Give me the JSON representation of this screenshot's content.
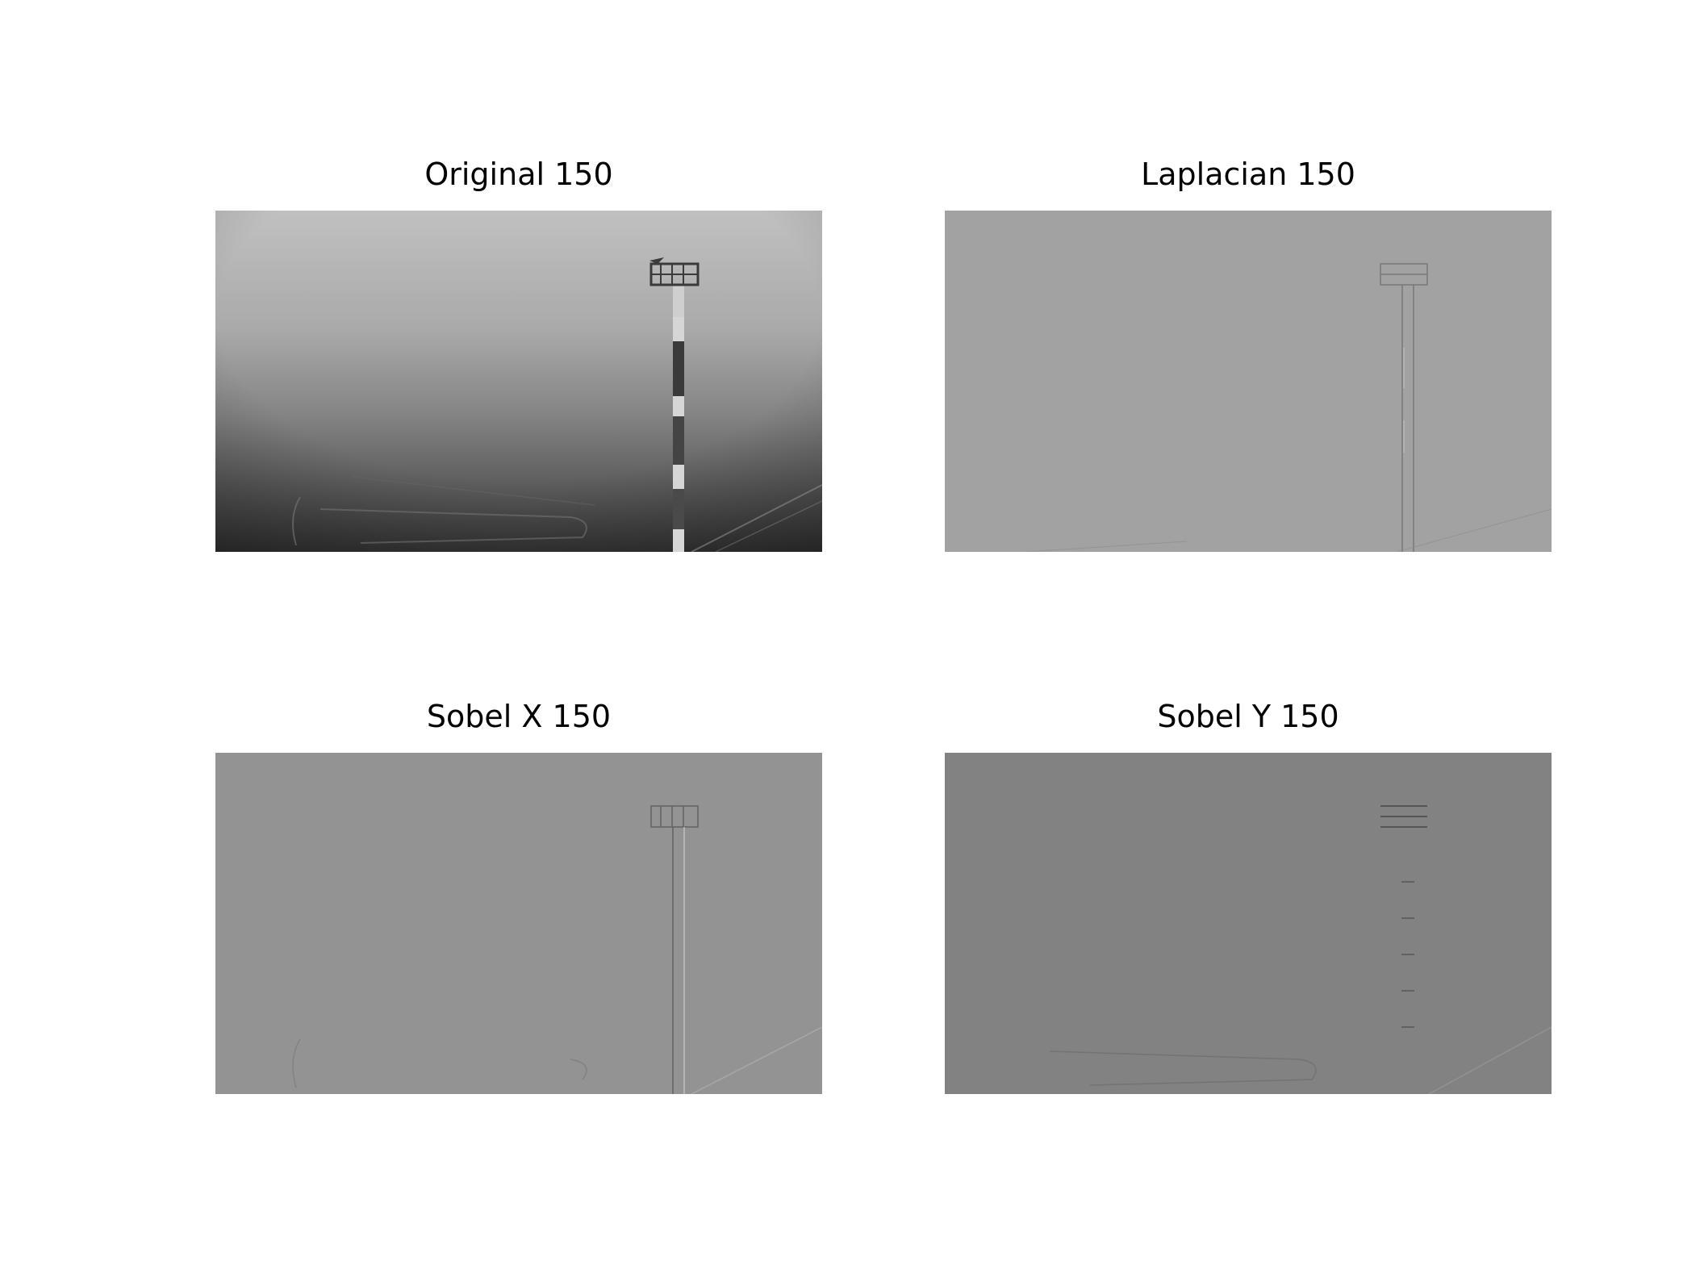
{
  "figure": {
    "panels": [
      {
        "title": "Original 150",
        "kind": "original"
      },
      {
        "title": "Laplacian 150",
        "kind": "laplacian"
      },
      {
        "title": "Sobel X 150",
        "kind": "sobel-x"
      },
      {
        "title": "Sobel Y 150",
        "kind": "sobel-y"
      }
    ]
  }
}
